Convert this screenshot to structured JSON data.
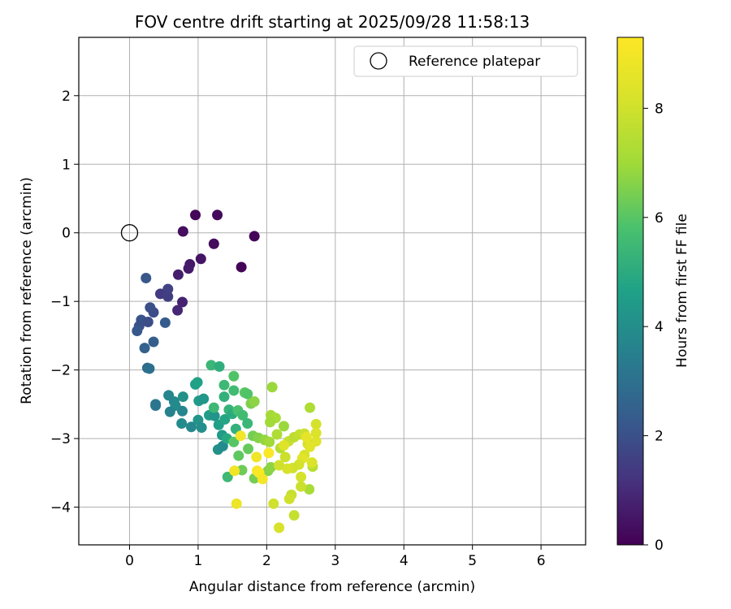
{
  "chart_data": {
    "type": "scatter",
    "title": "FOV centre drift starting at 2025/09/28 11:58:13",
    "xlabel": "Angular distance from reference (arcmin)",
    "ylabel": "Rotation from reference (arcmin)",
    "xlim": [
      -0.74,
      6.65
    ],
    "ylim": [
      -4.55,
      2.85
    ],
    "xticks": [
      0,
      1,
      2,
      3,
      4,
      5,
      6
    ],
    "yticks": [
      -4,
      -3,
      -2,
      -1,
      0,
      1,
      2
    ],
    "grid": true,
    "legend": {
      "position": "top-right",
      "entries": [
        "Reference platepar"
      ]
    },
    "reference_point": {
      "x": 0,
      "y": 0,
      "label": "Reference platepar"
    },
    "colorbar": {
      "label": "Hours from first FF file",
      "min": 0,
      "max": 9.3,
      "ticks": [
        0,
        2,
        4,
        6,
        8
      ],
      "colormap": "viridis"
    },
    "series": [
      {
        "name": "FOV centre",
        "points": [
          {
            "x": 0.96,
            "y": 0.26,
            "h": 0.15
          },
          {
            "x": 1.28,
            "y": 0.26,
            "h": 0.2
          },
          {
            "x": 0.78,
            "y": 0.02,
            "h": 0.3
          },
          {
            "x": 1.82,
            "y": -0.05,
            "h": 0.1
          },
          {
            "x": 1.23,
            "y": -0.16,
            "h": 0.25
          },
          {
            "x": 1.04,
            "y": -0.38,
            "h": 0.45
          },
          {
            "x": 1.63,
            "y": -0.5,
            "h": 0.1
          },
          {
            "x": 0.88,
            "y": -0.46,
            "h": 0.55
          },
          {
            "x": 0.86,
            "y": -0.52,
            "h": 0.6
          },
          {
            "x": 0.71,
            "y": -0.61,
            "h": 0.7
          },
          {
            "x": 0.77,
            "y": -1.01,
            "h": 0.8
          },
          {
            "x": 0.7,
            "y": -1.13,
            "h": 0.9
          },
          {
            "x": 0.24,
            "y": -0.66,
            "h": 2.2
          },
          {
            "x": 0.56,
            "y": -0.82,
            "h": 1.6
          },
          {
            "x": 0.45,
            "y": -0.89,
            "h": 1.4
          },
          {
            "x": 0.56,
            "y": -0.93,
            "h": 1.5
          },
          {
            "x": 0.3,
            "y": -1.09,
            "h": 2.0
          },
          {
            "x": 0.35,
            "y": -1.16,
            "h": 1.9
          },
          {
            "x": 0.52,
            "y": -1.31,
            "h": 2.3
          },
          {
            "x": 0.17,
            "y": -1.27,
            "h": 2.1
          },
          {
            "x": 0.27,
            "y": -1.3,
            "h": 1.9
          },
          {
            "x": 0.14,
            "y": -1.36,
            "h": 2.0
          },
          {
            "x": 0.11,
            "y": -1.43,
            "h": 2.2
          },
          {
            "x": 0.35,
            "y": -1.59,
            "h": 2.4
          },
          {
            "x": 0.22,
            "y": -1.68,
            "h": 2.5
          },
          {
            "x": 0.26,
            "y": -1.97,
            "h": 2.8
          },
          {
            "x": 0.29,
            "y": -1.98,
            "h": 3.0
          },
          {
            "x": 0.38,
            "y": -2.5,
            "h": 3.3
          },
          {
            "x": 0.38,
            "y": -2.52,
            "h": 3.2
          },
          {
            "x": 0.57,
            "y": -2.37,
            "h": 3.7
          },
          {
            "x": 0.65,
            "y": -2.46,
            "h": 3.8
          },
          {
            "x": 0.67,
            "y": -2.52,
            "h": 3.9
          },
          {
            "x": 0.59,
            "y": -2.61,
            "h": 3.6
          },
          {
            "x": 0.78,
            "y": -2.39,
            "h": 4.1
          },
          {
            "x": 0.77,
            "y": -2.6,
            "h": 3.7
          },
          {
            "x": 0.76,
            "y": -2.78,
            "h": 3.9
          },
          {
            "x": 0.9,
            "y": -2.83,
            "h": 3.8
          },
          {
            "x": 1.0,
            "y": -2.73,
            "h": 4.2
          },
          {
            "x": 1.05,
            "y": -2.84,
            "h": 4.0
          },
          {
            "x": 0.96,
            "y": -2.21,
            "h": 4.6
          },
          {
            "x": 0.99,
            "y": -2.18,
            "h": 4.7
          },
          {
            "x": 1.01,
            "y": -2.45,
            "h": 4.4
          },
          {
            "x": 1.08,
            "y": -2.42,
            "h": 4.3
          },
          {
            "x": 1.16,
            "y": -2.66,
            "h": 4.5
          },
          {
            "x": 1.24,
            "y": -2.67,
            "h": 4.2
          },
          {
            "x": 1.29,
            "y": -3.16,
            "h": 4.1
          },
          {
            "x": 1.36,
            "y": -3.11,
            "h": 3.9
          },
          {
            "x": 1.3,
            "y": -2.8,
            "h": 4.6
          },
          {
            "x": 1.35,
            "y": -2.95,
            "h": 4.4
          },
          {
            "x": 1.39,
            "y": -2.72,
            "h": 4.8
          },
          {
            "x": 1.42,
            "y": -3.0,
            "h": 4.9
          },
          {
            "x": 1.19,
            "y": -1.93,
            "h": 5.4
          },
          {
            "x": 1.31,
            "y": -1.95,
            "h": 5.1
          },
          {
            "x": 1.38,
            "y": -2.22,
            "h": 5.5
          },
          {
            "x": 1.38,
            "y": -2.39,
            "h": 5.2
          },
          {
            "x": 1.52,
            "y": -2.09,
            "h": 5.9
          },
          {
            "x": 1.52,
            "y": -2.3,
            "h": 5.6
          },
          {
            "x": 1.23,
            "y": -2.55,
            "h": 5.5
          },
          {
            "x": 1.45,
            "y": -2.58,
            "h": 5.3
          },
          {
            "x": 1.5,
            "y": -2.64,
            "h": 5.0
          },
          {
            "x": 1.58,
            "y": -2.59,
            "h": 5.8
          },
          {
            "x": 1.65,
            "y": -2.66,
            "h": 5.6
          },
          {
            "x": 1.55,
            "y": -2.86,
            "h": 5.2
          },
          {
            "x": 1.68,
            "y": -2.33,
            "h": 6.0
          },
          {
            "x": 1.72,
            "y": -2.35,
            "h": 5.9
          },
          {
            "x": 1.77,
            "y": -2.49,
            "h": 6.5
          },
          {
            "x": 1.82,
            "y": -2.46,
            "h": 6.7
          },
          {
            "x": 1.72,
            "y": -2.78,
            "h": 5.4
          },
          {
            "x": 1.8,
            "y": -2.96,
            "h": 6.4
          },
          {
            "x": 1.59,
            "y": -3.25,
            "h": 6.1
          },
          {
            "x": 1.64,
            "y": -3.46,
            "h": 6.3
          },
          {
            "x": 1.43,
            "y": -3.56,
            "h": 5.5
          },
          {
            "x": 1.52,
            "y": -3.05,
            "h": 6.0
          },
          {
            "x": 1.73,
            "y": -3.15,
            "h": 6.2
          },
          {
            "x": 1.82,
            "y": -3.58,
            "h": 6.4
          },
          {
            "x": 1.88,
            "y": -2.99,
            "h": 6.6
          },
          {
            "x": 1.97,
            "y": -3.02,
            "h": 6.8
          },
          {
            "x": 2.08,
            "y": -2.25,
            "h": 6.9
          },
          {
            "x": 2.06,
            "y": -2.66,
            "h": 7.1
          },
          {
            "x": 2.13,
            "y": -2.7,
            "h": 7.2
          },
          {
            "x": 2.05,
            "y": -2.76,
            "h": 7.0
          },
          {
            "x": 2.25,
            "y": -2.82,
            "h": 6.9
          },
          {
            "x": 2.04,
            "y": -3.05,
            "h": 7.0
          },
          {
            "x": 2.02,
            "y": -3.47,
            "h": 6.6
          },
          {
            "x": 2.06,
            "y": -3.42,
            "h": 6.7
          },
          {
            "x": 2.15,
            "y": -2.94,
            "h": 7.3
          },
          {
            "x": 2.2,
            "y": -3.14,
            "h": 7.4
          },
          {
            "x": 2.63,
            "y": -2.55,
            "h": 7.3
          },
          {
            "x": 2.62,
            "y": -3.74,
            "h": 7.2
          },
          {
            "x": 2.67,
            "y": -3.41,
            "h": 7.5
          },
          {
            "x": 2.32,
            "y": -3.04,
            "h": 7.8
          },
          {
            "x": 2.4,
            "y": -2.98,
            "h": 7.6
          },
          {
            "x": 2.48,
            "y": -2.94,
            "h": 7.7
          },
          {
            "x": 2.55,
            "y": -2.93,
            "h": 7.9
          },
          {
            "x": 2.72,
            "y": -2.79,
            "h": 8.1
          },
          {
            "x": 2.72,
            "y": -2.92,
            "h": 8.3
          },
          {
            "x": 2.72,
            "y": -3.04,
            "h": 8.4
          },
          {
            "x": 2.6,
            "y": -3.08,
            "h": 8.0
          },
          {
            "x": 2.55,
            "y": -3.24,
            "h": 8.2
          },
          {
            "x": 2.52,
            "y": -3.29,
            "h": 8.5
          },
          {
            "x": 2.66,
            "y": -3.35,
            "h": 8.3
          },
          {
            "x": 2.47,
            "y": -3.38,
            "h": 8.1
          },
          {
            "x": 2.38,
            "y": -3.43,
            "h": 8.0
          },
          {
            "x": 2.3,
            "y": -3.44,
            "h": 8.2
          },
          {
            "x": 2.27,
            "y": -3.27,
            "h": 7.9
          },
          {
            "x": 2.25,
            "y": -3.1,
            "h": 8.4
          },
          {
            "x": 2.18,
            "y": -3.39,
            "h": 8.0
          },
          {
            "x": 2.5,
            "y": -3.56,
            "h": 8.1
          },
          {
            "x": 2.5,
            "y": -3.7,
            "h": 7.9
          },
          {
            "x": 2.36,
            "y": -3.82,
            "h": 7.8
          },
          {
            "x": 2.33,
            "y": -3.88,
            "h": 8.0
          },
          {
            "x": 2.1,
            "y": -3.95,
            "h": 8.0
          },
          {
            "x": 2.4,
            "y": -4.12,
            "h": 7.8
          },
          {
            "x": 2.18,
            "y": -4.3,
            "h": 8.2
          },
          {
            "x": 1.62,
            "y": -2.96,
            "h": 9.0
          },
          {
            "x": 1.85,
            "y": -3.27,
            "h": 8.9
          },
          {
            "x": 1.86,
            "y": -3.47,
            "h": 9.1
          },
          {
            "x": 1.89,
            "y": -3.5,
            "h": 9.2
          },
          {
            "x": 1.94,
            "y": -3.59,
            "h": 9.0
          },
          {
            "x": 2.03,
            "y": -3.21,
            "h": 9.2
          },
          {
            "x": 1.53,
            "y": -3.47,
            "h": 8.9
          },
          {
            "x": 1.56,
            "y": -3.95,
            "h": 8.8
          },
          {
            "x": 2.58,
            "y": -2.98,
            "h": 8.6
          },
          {
            "x": 2.63,
            "y": -3.12,
            "h": 8.5
          }
        ]
      }
    ]
  }
}
